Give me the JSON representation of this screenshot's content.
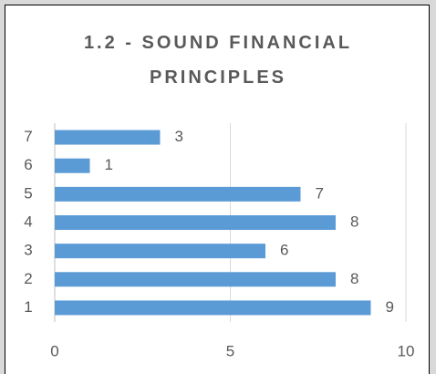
{
  "chart_data": {
    "type": "barh",
    "title": "1.2 - SOUND FINANCIAL PRINCIPLES",
    "categories": [
      "1",
      "2",
      "3",
      "4",
      "5",
      "6",
      "7"
    ],
    "values": [
      9,
      8,
      6,
      8,
      7,
      1,
      3
    ],
    "color": "#5b9bd5",
    "xlim": [
      0,
      10
    ],
    "xticks": [
      0,
      5,
      10
    ],
    "grid": true
  }
}
